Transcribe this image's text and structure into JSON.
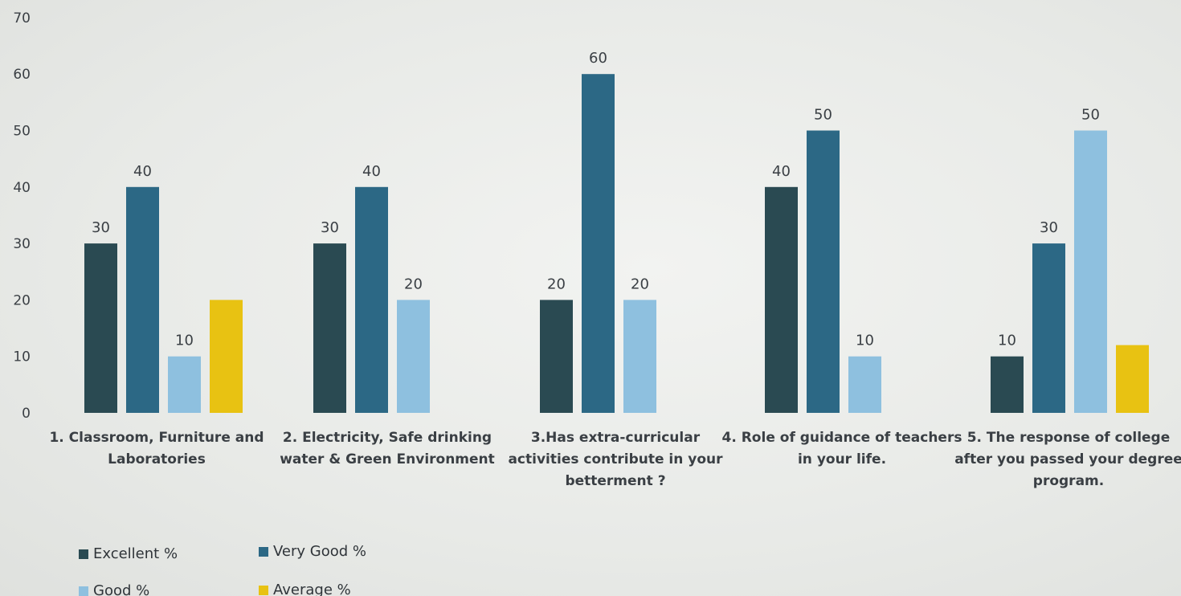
{
  "chart_data": {
    "type": "bar",
    "categories": [
      "1. Classroom, Furniture and Laboratories",
      "2. Electricity, Safe drinking water & Green Environment",
      "3.Has extra-curricular activities contribute in your betterment ?",
      "4. Role of guidance of teachers in your life.",
      "5. The response of college after you passed your degree program."
    ],
    "category_lines": [
      [
        "1. Classroom, Furniture and",
        "Laboratories"
      ],
      [
        "2. Electricity, Safe drinking",
        "water & Green Environment"
      ],
      [
        "3.Has extra-curricular",
        "activities contribute in your",
        "betterment ?"
      ],
      [
        "4. Role of guidance of teachers",
        "in your life."
      ],
      [
        "5. The response of college",
        "after you passed your degree",
        "program."
      ]
    ],
    "series": [
      {
        "name": "Excellent %",
        "color": "#2a4a52",
        "values": [
          30,
          30,
          20,
          40,
          10
        ]
      },
      {
        "name": "Very Good %",
        "color": "#2c6885",
        "values": [
          40,
          40,
          60,
          50,
          30
        ]
      },
      {
        "name": "Good %",
        "color": "#8ec0df",
        "values": [
          10,
          20,
          20,
          10,
          50
        ]
      },
      {
        "name": "Average %",
        "color": "#e8c212",
        "values": [
          20,
          null,
          null,
          null,
          12
        ]
      }
    ],
    "data_labels": [
      [
        "30",
        "30",
        "20",
        "40",
        "10"
      ],
      [
        "40",
        "40",
        "60",
        "50",
        "30"
      ],
      [
        "10",
        "20",
        "20",
        "10",
        "50"
      ],
      [
        null,
        null,
        null,
        null,
        null
      ]
    ],
    "ylim": [
      0,
      70
    ],
    "yticks": [
      "0",
      "10",
      "20",
      "30",
      "40",
      "50",
      "60",
      "70"
    ],
    "title": "",
    "xlabel": "",
    "ylabel": "",
    "grid": false,
    "legend_position": "bottom-left"
  }
}
